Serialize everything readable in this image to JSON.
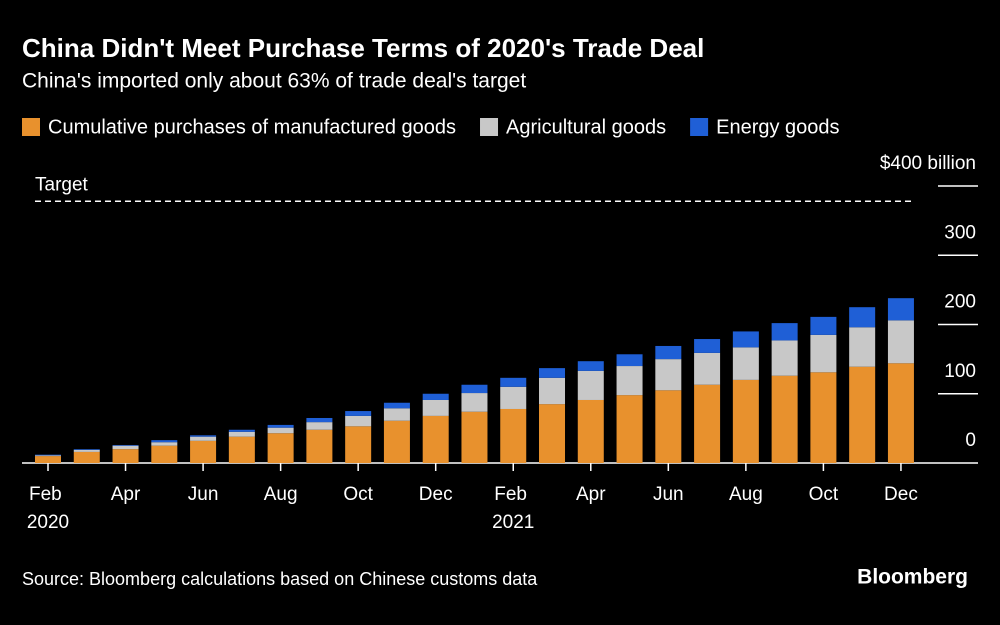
{
  "chart_data": {
    "type": "stacked_bar",
    "title": "China Didn't Meet Purchase Terms of 2020's Trade Deal",
    "subtitle": "China's imported only about 63% of trade deal's target",
    "categories": [
      "Feb 2020",
      null,
      "Apr",
      null,
      "Jun",
      null,
      "Aug",
      null,
      "Oct",
      null,
      "Dec",
      null,
      "Feb 2021",
      null,
      "Apr",
      null,
      "Jun",
      null,
      "Aug",
      null,
      "Oct",
      null,
      "Dec"
    ],
    "series": [
      {
        "name": "Cumulative purchases of manufactured goods",
        "color": "#e8912d",
        "values": [
          10,
          16,
          20,
          25,
          32,
          38,
          43,
          48,
          53,
          61,
          68,
          74,
          78,
          85,
          91,
          98,
          105,
          113,
          120,
          126,
          131,
          139,
          144
        ]
      },
      {
        "name": "Agricultural goods",
        "color": "#c8c8c8",
        "values": [
          1,
          3,
          5,
          5,
          6,
          7,
          8,
          11,
          15,
          18,
          23,
          27,
          32,
          38,
          42,
          42,
          45,
          46,
          47,
          51,
          54,
          57,
          62
        ]
      },
      {
        "name": "Energy goods",
        "color": "#1f5fd6",
        "values": [
          1,
          1,
          1,
          3,
          2,
          3,
          4,
          6,
          7,
          8,
          9,
          12,
          13,
          14,
          14,
          17,
          19,
          20,
          23,
          25,
          26,
          29,
          32
        ]
      }
    ],
    "ylim": [
      0,
      400
    ],
    "yticks": [
      0,
      100,
      200,
      300,
      {
        "value": 400,
        "label": "$400 billion"
      }
    ],
    "target": 378,
    "target_label": "Target",
    "source": "Source: Bloomberg calculations based on Chinese customs data",
    "brand": "Bloomberg"
  }
}
